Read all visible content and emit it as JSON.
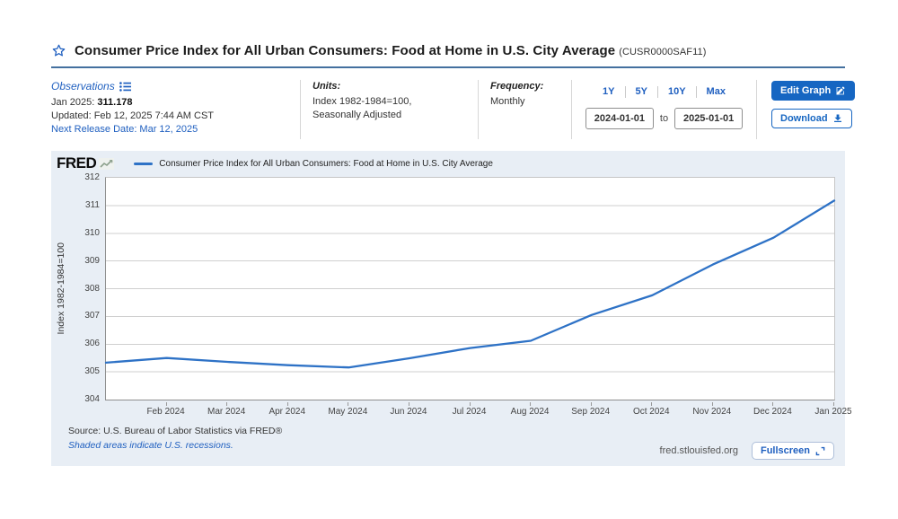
{
  "header": {
    "title": "Consumer Price Index for All Urban Consumers: Food at Home in U.S. City Average",
    "series_id": "(CUSR0000SAF11)"
  },
  "meta": {
    "observations": {
      "label": "Observations",
      "latest_period": "Jan 2025:",
      "latest_value": "311.178",
      "updated": "Updated: Feb 12, 2025 7:44 AM CST",
      "next_release": "Next Release Date: Mar 12, 2025"
    },
    "units": {
      "label": "Units:",
      "line1": "Index 1982-1984=100,",
      "line2": "Seasonally Adjusted"
    },
    "frequency": {
      "label": "Frequency:",
      "value": "Monthly"
    },
    "range": {
      "options": [
        "1Y",
        "5Y",
        "10Y",
        "Max"
      ],
      "start": "2024-01-01",
      "to_label": "to",
      "end": "2025-01-01"
    },
    "actions": {
      "edit": "Edit Graph",
      "download": "Download"
    }
  },
  "panel": {
    "logo": "FRED",
    "legend": "Consumer Price Index for All Urban Consumers: Food at Home in U.S. City Average",
    "source": "Source: U.S. Bureau of Labor Statistics via FRED®",
    "note": "Shaded areas indicate U.S. recessions.",
    "domain": "fred.stlouisfed.org",
    "fullscreen": "Fullscreen"
  },
  "colors": {
    "accent": "#1666c2",
    "link": "#2060c0",
    "line": "#2e72c6",
    "panel_bg": "#e8eef5",
    "grid": "#cfcfcf"
  },
  "chart_data": {
    "type": "line",
    "title": "Consumer Price Index for All Urban Consumers: Food at Home in U.S. City Average",
    "x": [
      "Jan 2024",
      "Feb 2024",
      "Mar 2024",
      "Apr 2024",
      "May 2024",
      "Jun 2024",
      "Jul 2024",
      "Aug 2024",
      "Sep 2024",
      "Oct 2024",
      "Nov 2024",
      "Dec 2024",
      "Jan 2025"
    ],
    "values": [
      305.33,
      305.5,
      305.36,
      305.24,
      305.16,
      305.49,
      305.86,
      306.12,
      307.05,
      307.76,
      308.87,
      309.84,
      311.178
    ],
    "x_tick_labels": [
      "Feb 2024",
      "Mar 2024",
      "Apr 2024",
      "May 2024",
      "Jun 2024",
      "Jul 2024",
      "Aug 2024",
      "Sep 2024",
      "Oct 2024",
      "Nov 2024",
      "Dec 2024",
      "Jan 2025"
    ],
    "xlabel": "",
    "ylabel": "Index 1982-1984=100",
    "ylim": [
      304,
      312
    ],
    "y_ticks": [
      304,
      305,
      306,
      307,
      308,
      309,
      310,
      311,
      312
    ],
    "grid": true,
    "legend_position": "top-left"
  }
}
